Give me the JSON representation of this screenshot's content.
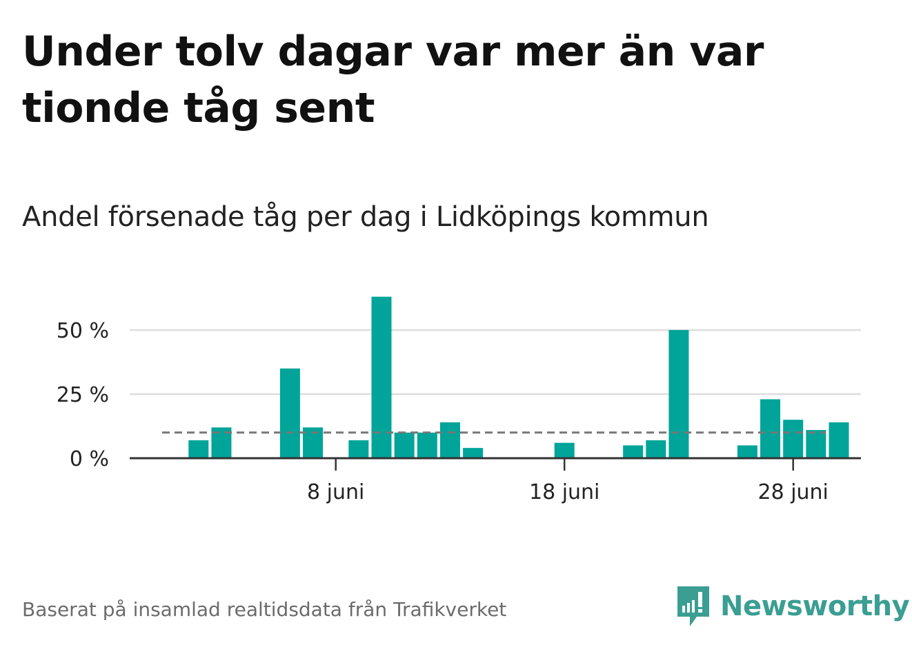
{
  "title": "Under tolv dagar var mer än var tionde tåg sent",
  "subtitle": "Andel försenade tåg per dag i Lidköpings kommun",
  "source": "Baserat på insamlad realtidsdata från Trafikverket",
  "logo_text": "Newsworthy",
  "colors": {
    "bar": "#00a499",
    "reference": "#777777",
    "grid": "#dddddd",
    "axis": "#333333",
    "logo": "#3a9e92"
  },
  "chart_data": {
    "type": "bar",
    "title": "Andel försenade tåg per dag i Lidköpings kommun",
    "xlabel": "",
    "ylabel": "",
    "x": [
      1,
      2,
      3,
      4,
      5,
      6,
      7,
      8,
      9,
      10,
      11,
      12,
      13,
      14,
      15,
      16,
      17,
      18,
      19,
      20,
      21,
      22,
      23,
      24,
      25,
      26,
      27,
      28,
      29,
      30
    ],
    "values": [
      0,
      7,
      12,
      0,
      0,
      35,
      12,
      0,
      7,
      63,
      10,
      10,
      14,
      4,
      0,
      0,
      0,
      6,
      0,
      0,
      5,
      7,
      50,
      0,
      0,
      5,
      23,
      15,
      11,
      14
    ],
    "reference_line": 10,
    "ylim": [
      0,
      70
    ],
    "yticks": [
      0,
      25,
      50
    ],
    "ytick_labels": [
      "0 %",
      "25 %",
      "50 %"
    ],
    "xticks": [
      8,
      18,
      28
    ],
    "xtick_labels": [
      "8 juni",
      "18 juni",
      "28 juni"
    ],
    "grid": true
  }
}
